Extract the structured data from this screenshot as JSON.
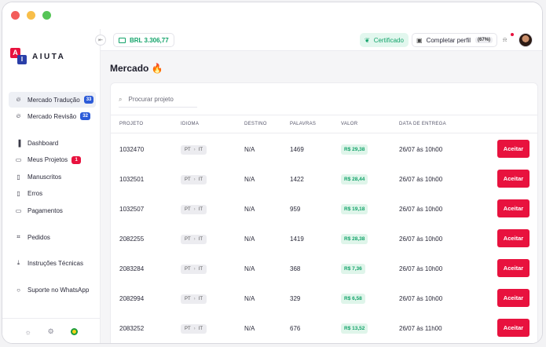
{
  "app": {
    "name": "AIUTA"
  },
  "sidebar": {
    "items": [
      {
        "label": "Mercado Tradução",
        "badge": "33",
        "badge_color": "#2c5bd8",
        "icon": "fire-icon",
        "active": true
      },
      {
        "label": "Mercado Revisão",
        "badge": "32",
        "badge_color": "#2c5bd8",
        "icon": "fire-icon"
      },
      {
        "label": "Dashboard",
        "icon": "bar-chart-icon"
      },
      {
        "label": "Meus Projetos",
        "badge": "1",
        "badge_color": "#e8123e",
        "icon": "folder-icon"
      },
      {
        "label": "Manuscritos",
        "icon": "document-icon"
      },
      {
        "label": "Erros",
        "icon": "file-icon"
      },
      {
        "label": "Pagamentos",
        "icon": "wallet-icon"
      },
      {
        "label": "Pedidos",
        "icon": "cart-icon"
      },
      {
        "label": "Instruções Técnicas",
        "icon": "download-icon"
      },
      {
        "label": "Suporte no WhatsApp",
        "icon": "whatsapp-icon"
      }
    ]
  },
  "topbar": {
    "balance": "BRL 3.306,77",
    "certificate": "Certificado",
    "profile_label": "Completar perfil",
    "profile_progress": "(67%)"
  },
  "main": {
    "title": "Mercado",
    "title_emoji": "🔥",
    "search_placeholder": "Procurar projeto",
    "columns": [
      "PROJETO",
      "IDIOMA",
      "DESTINO",
      "PALAVRAS",
      "VALOR",
      "DATA DE ENTREGA"
    ],
    "accept_label": "Aceitar",
    "rows": [
      {
        "project": "1032470",
        "lang_from": "PT",
        "lang_to": "IT",
        "destination": "N/A",
        "words": "1469",
        "value": "R$ 29,38",
        "due": "26/07 às 10h00"
      },
      {
        "project": "1032501",
        "lang_from": "PT",
        "lang_to": "IT",
        "destination": "N/A",
        "words": "1422",
        "value": "R$ 28,44",
        "due": "26/07 às 10h00"
      },
      {
        "project": "1032507",
        "lang_from": "PT",
        "lang_to": "IT",
        "destination": "N/A",
        "words": "959",
        "value": "R$ 19,18",
        "due": "26/07 às 10h00"
      },
      {
        "project": "2082255",
        "lang_from": "PT",
        "lang_to": "IT",
        "destination": "N/A",
        "words": "1419",
        "value": "R$ 28,38",
        "due": "26/07 às 10h00"
      },
      {
        "project": "2083284",
        "lang_from": "PT",
        "lang_to": "IT",
        "destination": "N/A",
        "words": "368",
        "value": "R$ 7,36",
        "due": "26/07 às 10h00"
      },
      {
        "project": "2082994",
        "lang_from": "PT",
        "lang_to": "IT",
        "destination": "N/A",
        "words": "329",
        "value": "R$ 6,58",
        "due": "26/07 às 10h00"
      },
      {
        "project": "2083252",
        "lang_from": "PT",
        "lang_to": "IT",
        "destination": "N/A",
        "words": "676",
        "value": "R$ 13,52",
        "due": "26/07 às 11h00"
      }
    ]
  },
  "colors": {
    "accent": "#e8123e",
    "success": "#13a36a",
    "brand_blue": "#2a3fa8"
  }
}
